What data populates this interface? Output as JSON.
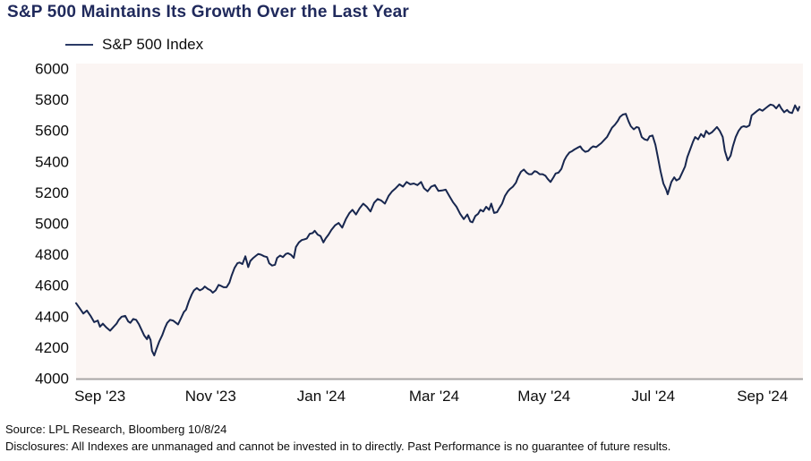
{
  "title": "S&P 500 Maintains Its Growth Over the Last Year",
  "legend": {
    "label": "S&P 500 Index"
  },
  "footer": {
    "source": "Source: LPL Research, Bloomberg 10/8/24",
    "disclosures": "Disclosures: All Indexes are unmanaged and cannot be invested in to directly. Past Performance is no guarantee of future results."
  },
  "colors": {
    "title": "#202a5c",
    "line": "#18274f",
    "plot_bg": "#fbf5f3",
    "axis": "#a8a5a5",
    "tick_text": "#0d0d0d"
  },
  "chart_data": {
    "type": "line",
    "title": "S&P 500 Maintains Its Growth Over the Last Year",
    "xlabel": "",
    "ylabel": "",
    "ylim": [
      4000,
      6000
    ],
    "y_ticks": [
      4000,
      4200,
      4400,
      4600,
      4800,
      5000,
      5200,
      5400,
      5600,
      5800,
      6000
    ],
    "x_tick_labels": [
      "Sep '23",
      "Nov '23",
      "Jan '24",
      "Mar '24",
      "May '24",
      "Jul '24",
      "Sep '24"
    ],
    "x_tick_positions": [
      0.033,
      0.186,
      0.339,
      0.495,
      0.647,
      0.798,
      0.949
    ],
    "grid": false,
    "legend_position": "top-left",
    "series": [
      {
        "name": "S&P 500 Index",
        "points": [
          [
            0.0,
            4487
          ],
          [
            0.005,
            4455
          ],
          [
            0.01,
            4420
          ],
          [
            0.015,
            4440
          ],
          [
            0.02,
            4405
          ],
          [
            0.025,
            4365
          ],
          [
            0.03,
            4375
          ],
          [
            0.033,
            4335
          ],
          [
            0.037,
            4355
          ],
          [
            0.042,
            4330
          ],
          [
            0.047,
            4310
          ],
          [
            0.051,
            4330
          ],
          [
            0.056,
            4355
          ],
          [
            0.059,
            4380
          ],
          [
            0.063,
            4400
          ],
          [
            0.068,
            4405
          ],
          [
            0.072,
            4370
          ],
          [
            0.075,
            4360
          ],
          [
            0.079,
            4385
          ],
          [
            0.083,
            4380
          ],
          [
            0.087,
            4350
          ],
          [
            0.09,
            4320
          ],
          [
            0.094,
            4280
          ],
          [
            0.098,
            4255
          ],
          [
            0.1,
            4280
          ],
          [
            0.103,
            4250
          ],
          [
            0.105,
            4180
          ],
          [
            0.108,
            4150
          ],
          [
            0.111,
            4190
          ],
          [
            0.115,
            4240
          ],
          [
            0.119,
            4280
          ],
          [
            0.123,
            4330
          ],
          [
            0.126,
            4360
          ],
          [
            0.13,
            4380
          ],
          [
            0.134,
            4375
          ],
          [
            0.137,
            4365
          ],
          [
            0.141,
            4350
          ],
          [
            0.145,
            4390
          ],
          [
            0.149,
            4430
          ],
          [
            0.152,
            4445
          ],
          [
            0.156,
            4500
          ],
          [
            0.16,
            4545
          ],
          [
            0.163,
            4570
          ],
          [
            0.167,
            4585
          ],
          [
            0.171,
            4570
          ],
          [
            0.175,
            4580
          ],
          [
            0.178,
            4595
          ],
          [
            0.182,
            4580
          ],
          [
            0.186,
            4570
          ],
          [
            0.189,
            4555
          ],
          [
            0.193,
            4570
          ],
          [
            0.197,
            4605
          ],
          [
            0.2,
            4600
          ],
          [
            0.204,
            4590
          ],
          [
            0.208,
            4590
          ],
          [
            0.212,
            4620
          ],
          [
            0.215,
            4665
          ],
          [
            0.219,
            4715
          ],
          [
            0.223,
            4745
          ],
          [
            0.226,
            4750
          ],
          [
            0.23,
            4740
          ],
          [
            0.234,
            4790
          ],
          [
            0.238,
            4720
          ],
          [
            0.241,
            4760
          ],
          [
            0.245,
            4780
          ],
          [
            0.249,
            4795
          ],
          [
            0.252,
            4805
          ],
          [
            0.256,
            4800
          ],
          [
            0.26,
            4790
          ],
          [
            0.264,
            4785
          ],
          [
            0.267,
            4745
          ],
          [
            0.271,
            4730
          ],
          [
            0.275,
            4735
          ],
          [
            0.278,
            4780
          ],
          [
            0.282,
            4795
          ],
          [
            0.286,
            4785
          ],
          [
            0.29,
            4805
          ],
          [
            0.293,
            4810
          ],
          [
            0.297,
            4800
          ],
          [
            0.301,
            4780
          ],
          [
            0.304,
            4850
          ],
          [
            0.308,
            4880
          ],
          [
            0.312,
            4895
          ],
          [
            0.316,
            4900
          ],
          [
            0.319,
            4905
          ],
          [
            0.323,
            4935
          ],
          [
            0.327,
            4940
          ],
          [
            0.33,
            4955
          ],
          [
            0.334,
            4930
          ],
          [
            0.338,
            4920
          ],
          [
            0.342,
            4880
          ],
          [
            0.345,
            4905
          ],
          [
            0.349,
            4930
          ],
          [
            0.353,
            4960
          ],
          [
            0.358,
            4990
          ],
          [
            0.363,
            5005
          ],
          [
            0.368,
            4975
          ],
          [
            0.373,
            5030
          ],
          [
            0.378,
            5070
          ],
          [
            0.382,
            5090
          ],
          [
            0.387,
            5060
          ],
          [
            0.392,
            5100
          ],
          [
            0.397,
            5130
          ],
          [
            0.402,
            5110
          ],
          [
            0.407,
            5080
          ],
          [
            0.412,
            5135
          ],
          [
            0.417,
            5160
          ],
          [
            0.422,
            5150
          ],
          [
            0.427,
            5130
          ],
          [
            0.432,
            5180
          ],
          [
            0.437,
            5210
          ],
          [
            0.442,
            5230
          ],
          [
            0.447,
            5255
          ],
          [
            0.452,
            5240
          ],
          [
            0.457,
            5270
          ],
          [
            0.462,
            5255
          ],
          [
            0.467,
            5260
          ],
          [
            0.472,
            5250
          ],
          [
            0.477,
            5270
          ],
          [
            0.481,
            5230
          ],
          [
            0.486,
            5210
          ],
          [
            0.491,
            5240
          ],
          [
            0.496,
            5250
          ],
          [
            0.501,
            5212
          ],
          [
            0.506,
            5215
          ],
          [
            0.511,
            5220
          ],
          [
            0.516,
            5180
          ],
          [
            0.521,
            5140
          ],
          [
            0.526,
            5110
          ],
          [
            0.531,
            5065
          ],
          [
            0.536,
            5030
          ],
          [
            0.541,
            5060
          ],
          [
            0.545,
            5015
          ],
          [
            0.548,
            5010
          ],
          [
            0.552,
            5050
          ],
          [
            0.556,
            5065
          ],
          [
            0.559,
            5090
          ],
          [
            0.563,
            5080
          ],
          [
            0.567,
            5110
          ],
          [
            0.571,
            5090
          ],
          [
            0.574,
            5130
          ],
          [
            0.578,
            5070
          ],
          [
            0.582,
            5075
          ],
          [
            0.585,
            5100
          ],
          [
            0.589,
            5130
          ],
          [
            0.593,
            5180
          ],
          [
            0.597,
            5210
          ],
          [
            0.6,
            5225
          ],
          [
            0.604,
            5240
          ],
          [
            0.608,
            5265
          ],
          [
            0.611,
            5300
          ],
          [
            0.615,
            5335
          ],
          [
            0.619,
            5350
          ],
          [
            0.623,
            5330
          ],
          [
            0.626,
            5320
          ],
          [
            0.63,
            5320
          ],
          [
            0.634,
            5340
          ],
          [
            0.637,
            5335
          ],
          [
            0.641,
            5320
          ],
          [
            0.645,
            5320
          ],
          [
            0.649,
            5310
          ],
          [
            0.652,
            5290
          ],
          [
            0.656,
            5270
          ],
          [
            0.66,
            5300
          ],
          [
            0.663,
            5325
          ],
          [
            0.667,
            5330
          ],
          [
            0.671,
            5355
          ],
          [
            0.675,
            5410
          ],
          [
            0.678,
            5435
          ],
          [
            0.682,
            5460
          ],
          [
            0.686,
            5470
          ],
          [
            0.689,
            5480
          ],
          [
            0.693,
            5490
          ],
          [
            0.697,
            5500
          ],
          [
            0.7,
            5480
          ],
          [
            0.704,
            5465
          ],
          [
            0.708,
            5470
          ],
          [
            0.712,
            5490
          ],
          [
            0.715,
            5500
          ],
          [
            0.719,
            5495
          ],
          [
            0.723,
            5510
          ],
          [
            0.726,
            5520
          ],
          [
            0.73,
            5540
          ],
          [
            0.734,
            5560
          ],
          [
            0.738,
            5595
          ],
          [
            0.741,
            5620
          ],
          [
            0.745,
            5640
          ],
          [
            0.749,
            5665
          ],
          [
            0.752,
            5690
          ],
          [
            0.756,
            5705
          ],
          [
            0.76,
            5710
          ],
          [
            0.764,
            5660
          ],
          [
            0.767,
            5630
          ],
          [
            0.771,
            5610
          ],
          [
            0.775,
            5625
          ],
          [
            0.778,
            5620
          ],
          [
            0.782,
            5560
          ],
          [
            0.786,
            5545
          ],
          [
            0.79,
            5540
          ],
          [
            0.793,
            5565
          ],
          [
            0.797,
            5570
          ],
          [
            0.801,
            5510
          ],
          [
            0.804,
            5440
          ],
          [
            0.808,
            5340
          ],
          [
            0.812,
            5260
          ],
          [
            0.816,
            5220
          ],
          [
            0.818,
            5190
          ],
          [
            0.823,
            5270
          ],
          [
            0.827,
            5300
          ],
          [
            0.83,
            5280
          ],
          [
            0.834,
            5290
          ],
          [
            0.838,
            5330
          ],
          [
            0.842,
            5370
          ],
          [
            0.845,
            5430
          ],
          [
            0.849,
            5480
          ],
          [
            0.853,
            5530
          ],
          [
            0.856,
            5560
          ],
          [
            0.86,
            5545
          ],
          [
            0.864,
            5580
          ],
          [
            0.868,
            5560
          ],
          [
            0.871,
            5600
          ],
          [
            0.875,
            5580
          ],
          [
            0.879,
            5590
          ],
          [
            0.883,
            5610
          ],
          [
            0.886,
            5625
          ],
          [
            0.89,
            5600
          ],
          [
            0.894,
            5560
          ],
          [
            0.897,
            5470
          ],
          [
            0.901,
            5410
          ],
          [
            0.905,
            5440
          ],
          [
            0.908,
            5500
          ],
          [
            0.912,
            5560
          ],
          [
            0.916,
            5600
          ],
          [
            0.92,
            5625
          ],
          [
            0.923,
            5630
          ],
          [
            0.927,
            5625
          ],
          [
            0.931,
            5635
          ],
          [
            0.934,
            5700
          ],
          [
            0.938,
            5715
          ],
          [
            0.942,
            5730
          ],
          [
            0.945,
            5740
          ],
          [
            0.949,
            5730
          ],
          [
            0.953,
            5745
          ],
          [
            0.957,
            5760
          ],
          [
            0.96,
            5770
          ],
          [
            0.964,
            5765
          ],
          [
            0.968,
            5745
          ],
          [
            0.972,
            5770
          ],
          [
            0.975,
            5745
          ],
          [
            0.979,
            5720
          ],
          [
            0.983,
            5735
          ],
          [
            0.986,
            5720
          ],
          [
            0.99,
            5715
          ],
          [
            0.994,
            5765
          ],
          [
            0.998,
            5730
          ],
          [
            1.0,
            5755
          ]
        ]
      }
    ]
  }
}
